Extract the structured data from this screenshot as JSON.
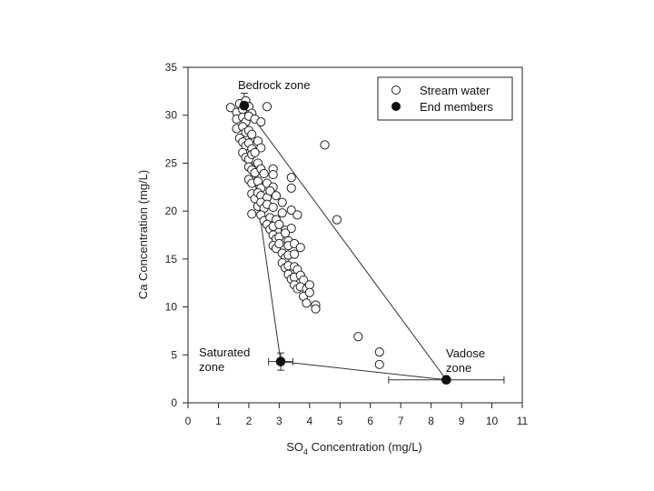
{
  "chart_data": {
    "type": "scatter",
    "xlabel_prefix": "SO",
    "xlabel_sub": "4",
    "xlabel_suffix": " Concentration (mg/L)",
    "ylabel": "Ca Concentration (mg/L)",
    "xlim": [
      0,
      11
    ],
    "ylim": [
      0,
      35
    ],
    "x_ticks": [
      0,
      1,
      2,
      3,
      4,
      5,
      6,
      7,
      8,
      9,
      10,
      11
    ],
    "y_ticks": [
      0,
      5,
      10,
      15,
      20,
      25,
      30,
      35
    ],
    "grid": false,
    "legend_position": "top-right",
    "series": [
      {
        "name": "Stream water",
        "marker": "open-circle",
        "points": [
          [
            1.4,
            30.8
          ],
          [
            1.6,
            30.3
          ],
          [
            1.7,
            31.2
          ],
          [
            1.8,
            30.6
          ],
          [
            1.9,
            31.5
          ],
          [
            2.0,
            30.9
          ],
          [
            2.1,
            30.2
          ],
          [
            2.6,
            30.9
          ],
          [
            1.6,
            29.6
          ],
          [
            1.8,
            29.8
          ],
          [
            1.9,
            29.3
          ],
          [
            2.0,
            29.9
          ],
          [
            2.2,
            29.6
          ],
          [
            2.4,
            29.3
          ],
          [
            1.6,
            28.6
          ],
          [
            1.8,
            28.8
          ],
          [
            1.9,
            28.2
          ],
          [
            2.0,
            28.4
          ],
          [
            2.1,
            28.0
          ],
          [
            1.7,
            27.6
          ],
          [
            1.8,
            27.2
          ],
          [
            1.9,
            26.8
          ],
          [
            2.0,
            27.1
          ],
          [
            2.1,
            26.5
          ],
          [
            2.3,
            27.3
          ],
          [
            2.4,
            26.6
          ],
          [
            1.8,
            26.1
          ],
          [
            1.9,
            25.6
          ],
          [
            2.0,
            25.4
          ],
          [
            2.1,
            25.9
          ],
          [
            2.2,
            26.1
          ],
          [
            2.3,
            25.0
          ],
          [
            2.0,
            24.6
          ],
          [
            2.1,
            24.3
          ],
          [
            2.2,
            24.0
          ],
          [
            2.4,
            24.4
          ],
          [
            2.5,
            23.9
          ],
          [
            2.8,
            24.4
          ],
          [
            2.8,
            23.8
          ],
          [
            3.4,
            23.5
          ],
          [
            2.0,
            23.3
          ],
          [
            2.1,
            22.9
          ],
          [
            2.3,
            23.1
          ],
          [
            2.4,
            22.4
          ],
          [
            2.6,
            22.9
          ],
          [
            2.8,
            22.5
          ],
          [
            3.4,
            22.4
          ],
          [
            2.1,
            21.8
          ],
          [
            2.2,
            21.3
          ],
          [
            2.3,
            21.9
          ],
          [
            2.4,
            21.6
          ],
          [
            2.6,
            21.4
          ],
          [
            2.7,
            22.1
          ],
          [
            2.9,
            21.6
          ],
          [
            2.3,
            20.5
          ],
          [
            2.4,
            20.9
          ],
          [
            2.5,
            20.3
          ],
          [
            2.6,
            20.7
          ],
          [
            2.8,
            20.4
          ],
          [
            3.1,
            20.9
          ],
          [
            3.4,
            20.1
          ],
          [
            2.1,
            19.7
          ],
          [
            2.4,
            19.6
          ],
          [
            2.5,
            19.0
          ],
          [
            2.7,
            19.3
          ],
          [
            2.9,
            19.1
          ],
          [
            3.1,
            19.8
          ],
          [
            3.6,
            19.6
          ],
          [
            4.9,
            19.1
          ],
          [
            2.6,
            18.6
          ],
          [
            2.7,
            18.1
          ],
          [
            2.8,
            18.4
          ],
          [
            3.0,
            18.6
          ],
          [
            3.2,
            18.0
          ],
          [
            3.4,
            18.2
          ],
          [
            2.8,
            17.5
          ],
          [
            2.9,
            17.1
          ],
          [
            3.0,
            17.3
          ],
          [
            3.2,
            17.7
          ],
          [
            3.3,
            16.9
          ],
          [
            2.8,
            16.4
          ],
          [
            2.9,
            16.1
          ],
          [
            3.0,
            16.6
          ],
          [
            3.3,
            16.4
          ],
          [
            3.5,
            16.6
          ],
          [
            3.7,
            16.2
          ],
          [
            3.1,
            15.6
          ],
          [
            3.2,
            15.1
          ],
          [
            3.3,
            15.4
          ],
          [
            3.5,
            15.5
          ],
          [
            3.1,
            14.6
          ],
          [
            3.2,
            14.1
          ],
          [
            3.3,
            14.3
          ],
          [
            3.5,
            14.2
          ],
          [
            3.6,
            13.9
          ],
          [
            3.3,
            13.4
          ],
          [
            3.4,
            12.9
          ],
          [
            3.5,
            13.1
          ],
          [
            3.7,
            13.3
          ],
          [
            3.8,
            12.8
          ],
          [
            3.5,
            12.3
          ],
          [
            3.6,
            11.9
          ],
          [
            3.7,
            12.1
          ],
          [
            3.9,
            11.9
          ],
          [
            4.0,
            12.3
          ],
          [
            3.8,
            11.1
          ],
          [
            4.0,
            11.5
          ],
          [
            3.9,
            10.4
          ],
          [
            4.2,
            10.2
          ],
          [
            4.2,
            9.8
          ],
          [
            4.5,
            26.9
          ],
          [
            5.6,
            6.9
          ],
          [
            6.3,
            5.3
          ],
          [
            6.3,
            4.0
          ]
        ]
      },
      {
        "name": "End members",
        "marker": "filled-circle",
        "points": [
          {
            "label": "Bedrock zone",
            "x": 1.85,
            "y": 31.0,
            "x_err": 0.2,
            "y_err": 1.3
          },
          {
            "label_line1": "Saturated",
            "label_line2": "zone",
            "x": 3.05,
            "y": 4.3,
            "x_err": 0.4,
            "y_err": 0.9
          },
          {
            "label_line1": "Vadose",
            "label_line2": "zone",
            "x": 8.5,
            "y": 2.4,
            "x_err": 1.9,
            "y_err": 0.0
          }
        ]
      }
    ],
    "mixing_lines": [
      [
        0,
        1
      ],
      [
        1,
        2
      ],
      [
        2,
        0
      ]
    ]
  }
}
